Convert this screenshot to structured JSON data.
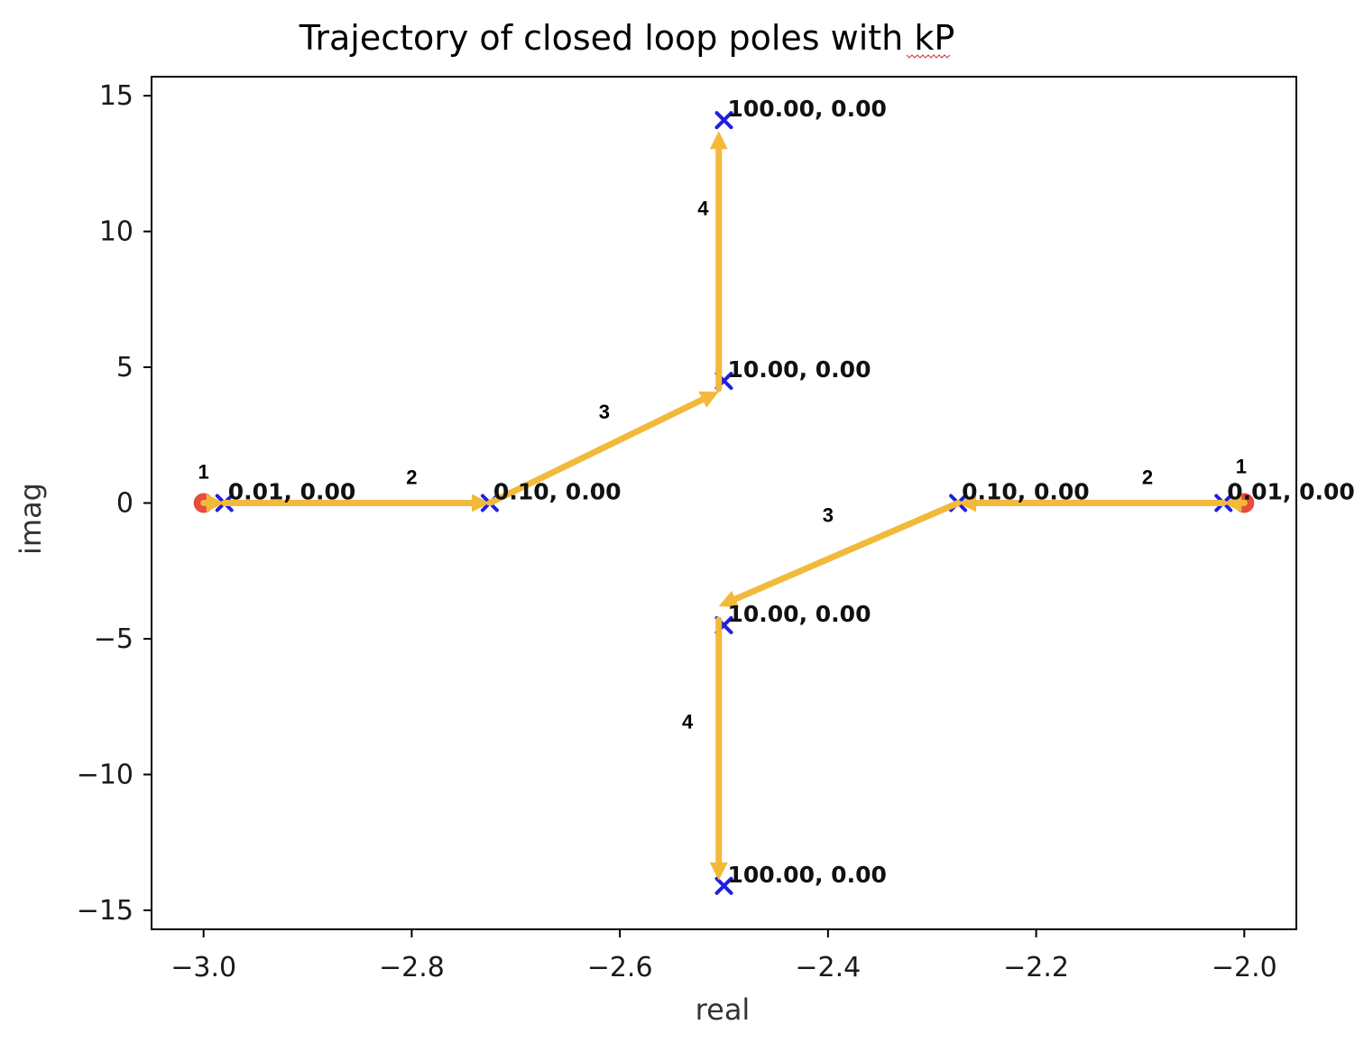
{
  "chart_data": {
    "type": "scatter",
    "title": "Trajectory of closed loop poles with kP",
    "xlabel": "real",
    "ylabel": "imag",
    "xlim": [
      -3.05,
      -1.95
    ],
    "ylim": [
      -15.7,
      15.7
    ],
    "xticks": [
      -3.0,
      -2.8,
      -2.6,
      -2.4,
      -2.2,
      -2.0
    ],
    "xtick_labels": [
      "−3.0",
      "−2.8",
      "−2.6",
      "−2.4",
      "−2.2",
      "−2.0"
    ],
    "yticks": [
      -15,
      -10,
      -5,
      0,
      5,
      10,
      15
    ],
    "ytick_labels": [
      "−15",
      "−10",
      "−5",
      "0",
      "5",
      "10",
      "15"
    ],
    "grid": false,
    "open_loop_poles": {
      "marker": "circle",
      "color": "#e74c3c",
      "points": [
        {
          "x": -3.0,
          "y": 0
        },
        {
          "x": -2.0,
          "y": 0
        }
      ]
    },
    "closed_loop_poles": {
      "marker": "x",
      "color": "#1f1fe0",
      "points": [
        {
          "x": -2.98,
          "y": 0,
          "label": "0.01, 0.00"
        },
        {
          "x": -2.02,
          "y": 0,
          "label": "0.01, 0.00"
        },
        {
          "x": -2.725,
          "y": 0,
          "label": "0.10, 0.00"
        },
        {
          "x": -2.275,
          "y": 0,
          "label": "0.10, 0.00"
        },
        {
          "x": -2.5,
          "y": 4.5,
          "label": "10.00, 0.00"
        },
        {
          "x": -2.5,
          "y": -4.5,
          "label": "10.00, 0.00"
        },
        {
          "x": -2.5,
          "y": 14.1,
          "label": "100.00, 0.00"
        },
        {
          "x": -2.5,
          "y": -14.1,
          "label": "100.00, 0.00"
        }
      ]
    },
    "trajectory": {
      "color": "#f2b93b",
      "arrows": [
        {
          "step": "1",
          "from": [
            -3.0,
            0
          ],
          "to": [
            -2.98,
            0
          ],
          "label_at": [
            -3.0,
            0.9
          ]
        },
        {
          "step": "2",
          "from": [
            -2.98,
            0
          ],
          "to": [
            -2.725,
            0
          ],
          "label_at": [
            -2.8,
            0.7
          ]
        },
        {
          "step": "3",
          "from": [
            -2.725,
            0
          ],
          "to": [
            -2.505,
            4.1
          ],
          "label_at": [
            -2.615,
            3.1
          ]
        },
        {
          "step": "4",
          "from": [
            -2.505,
            4.2
          ],
          "to": [
            -2.505,
            13.7
          ],
          "label_at": [
            -2.52,
            10.6
          ]
        },
        {
          "step": "1",
          "from": [
            -2.0,
            0
          ],
          "to": [
            -2.02,
            0
          ],
          "label_at": [
            -2.003,
            1.1
          ]
        },
        {
          "step": "2",
          "from": [
            -2.02,
            0
          ],
          "to": [
            -2.275,
            0
          ],
          "label_at": [
            -2.093,
            0.7
          ]
        },
        {
          "step": "3",
          "from": [
            -2.275,
            0
          ],
          "to": [
            -2.505,
            -3.8
          ],
          "label_at": [
            -2.4,
            -0.7
          ]
        },
        {
          "step": "4",
          "from": [
            -2.505,
            -4.3
          ],
          "to": [
            -2.505,
            -13.9
          ],
          "label_at": [
            -2.535,
            -8.3
          ]
        }
      ]
    }
  }
}
